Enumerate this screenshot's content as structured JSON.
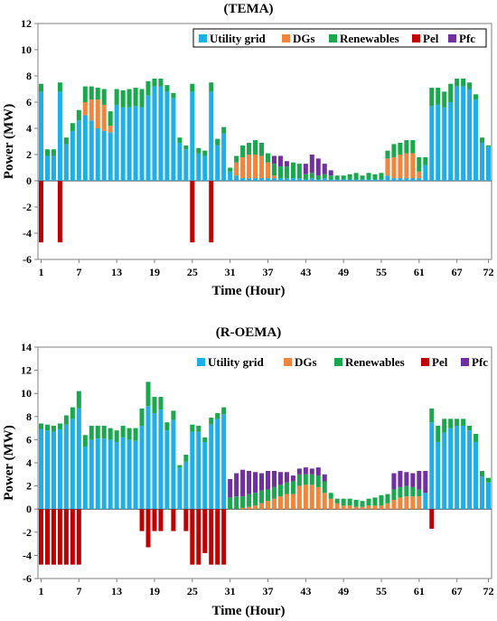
{
  "colors": {
    "utility": "#1eaee8",
    "dgs": "#f0853c",
    "renewables": "#19a84e",
    "pel": "#c00000",
    "pfc": "#7030a0",
    "frame": "#808080",
    "grid": "#c8c8c8"
  },
  "chart_data": [
    {
      "type": "bar",
      "stacked": true,
      "title": "(TEMA)",
      "xlabel": "Time (Hour)",
      "ylabel": "Power (MW)",
      "ylim": [
        -6,
        12
      ],
      "yticks": [
        -6,
        -4,
        -2,
        0,
        2,
        4,
        6,
        8,
        10,
        12
      ],
      "xticks": [
        1,
        7,
        13,
        19,
        25,
        31,
        37,
        43,
        49,
        55,
        61,
        67,
        72
      ],
      "hours": [
        1,
        2,
        3,
        4,
        5,
        6,
        7,
        8,
        9,
        10,
        11,
        12,
        13,
        14,
        15,
        16,
        17,
        18,
        19,
        20,
        21,
        22,
        23,
        24,
        25,
        26,
        27,
        28,
        29,
        30,
        31,
        32,
        33,
        34,
        35,
        36,
        37,
        38,
        39,
        40,
        41,
        42,
        43,
        44,
        45,
        46,
        47,
        48,
        49,
        50,
        51,
        52,
        53,
        54,
        55,
        56,
        57,
        58,
        59,
        60,
        61,
        62,
        63,
        64,
        65,
        66,
        67,
        68,
        69,
        70,
        71,
        72
      ],
      "legend": {
        "placement": "top-right",
        "entries": [
          "Utility grid",
          "DGs",
          "Renewables",
          "Pel",
          "Pfc"
        ]
      },
      "series": [
        {
          "name": "Utility grid",
          "color_key": "utility",
          "values": [
            6.8,
            1.9,
            1.9,
            6.8,
            2.8,
            3.8,
            4.6,
            5.0,
            4.6,
            4.0,
            3.8,
            3.7,
            5.8,
            5.6,
            5.6,
            5.7,
            5.6,
            6.5,
            7.2,
            7.2,
            6.8,
            6.3,
            2.9,
            2.4,
            6.8,
            2.1,
            1.9,
            6.8,
            2.7,
            3.6,
            0.7,
            0.4,
            0.2,
            0.2,
            0.2,
            0.2,
            0.2,
            0.2,
            0.2,
            0.2,
            0.2,
            0.2,
            0.1,
            0.2,
            0.1,
            0.2,
            0.1,
            0.1,
            0.1,
            0.1,
            0.1,
            0.1,
            0.1,
            0.1,
            0.1,
            0.4,
            0.2,
            0.2,
            0.2,
            0.2,
            0.2,
            1.2,
            5.7,
            5.8,
            5.6,
            6.0,
            7.2,
            7.2,
            7.0,
            6.2,
            2.9,
            2.6
          ]
        },
        {
          "name": "DGs",
          "color_key": "dgs",
          "values": [
            0,
            0,
            0,
            0,
            0,
            0,
            0,
            1.0,
            1.6,
            2.2,
            2.0,
            0.5,
            0,
            0,
            0,
            0,
            0,
            0,
            0,
            0,
            0,
            0,
            0,
            0,
            0,
            0,
            0,
            0,
            0,
            0,
            0,
            1.0,
            1.6,
            1.8,
            1.8,
            1.7,
            1.2,
            0.2,
            0,
            0,
            0,
            0,
            0,
            0,
            0,
            0,
            0,
            0,
            0,
            0,
            0,
            0,
            0,
            0,
            0,
            1.3,
            1.6,
            1.8,
            1.9,
            1.9,
            0.5,
            0,
            0,
            0,
            0,
            0,
            0,
            0,
            0,
            0,
            0,
            0
          ]
        },
        {
          "name": "Renewables",
          "color_key": "renewables",
          "values": [
            0.6,
            0.5,
            0.5,
            0.7,
            0.5,
            0.6,
            0.8,
            1.2,
            1.0,
            0.9,
            1.2,
            1.1,
            1.2,
            1.3,
            1.4,
            1.4,
            1.4,
            1.1,
            0.6,
            0.6,
            0.5,
            0.4,
            0.4,
            0.3,
            0.6,
            0.4,
            0.4,
            0.7,
            0.5,
            0.5,
            0.3,
            0.5,
            0.9,
            0.9,
            1.1,
            1.0,
            0.7,
            0.9,
            0.9,
            0.9,
            1.2,
            1.1,
            0.4,
            0.4,
            0.3,
            0.3,
            0.3,
            0.3,
            0.3,
            0.4,
            0.5,
            0.3,
            0.5,
            0.4,
            0.5,
            0.6,
            1.0,
            0.9,
            1.0,
            1.0,
            1.1,
            0.6,
            1.4,
            1.3,
            1.2,
            1.4,
            0.6,
            0.6,
            0.5,
            0.4,
            0.4,
            0.1
          ]
        },
        {
          "name": "Pfc",
          "color_key": "pfc",
          "values": [
            0,
            0,
            0,
            0,
            0,
            0,
            0,
            0,
            0,
            0,
            0,
            0,
            0,
            0,
            0,
            0,
            0,
            0,
            0,
            0,
            0,
            0,
            0,
            0,
            0,
            0,
            0,
            0,
            0,
            0,
            0,
            0,
            0,
            0,
            0,
            0,
            0,
            0.6,
            0.8,
            0.4,
            0,
            0,
            0.8,
            1.4,
            1.3,
            0.8,
            0.4,
            0,
            0,
            0,
            0,
            0,
            0,
            0,
            0,
            0,
            0,
            0,
            0,
            0,
            0,
            0,
            0,
            0,
            0,
            0,
            0,
            0,
            0,
            0,
            0,
            0
          ]
        },
        {
          "name": "Pel",
          "color_key": "pel",
          "values": [
            -4.7,
            0,
            0,
            -4.7,
            0,
            0,
            0,
            0,
            0,
            0,
            0,
            0,
            0,
            0,
            0,
            0,
            0,
            0,
            0,
            0,
            0,
            0,
            0,
            0,
            -4.7,
            0,
            0,
            -4.7,
            0,
            0,
            0,
            0,
            0,
            0,
            0,
            0,
            0,
            0,
            0,
            0,
            0,
            0,
            0,
            0,
            0,
            0,
            0,
            0,
            0,
            0,
            0,
            0,
            0,
            0,
            0,
            0,
            0,
            0,
            0,
            0,
            0,
            0,
            0,
            0,
            0,
            0,
            0,
            0,
            0,
            0,
            0,
            0
          ]
        }
      ]
    },
    {
      "type": "bar",
      "stacked": true,
      "title": "(R-OEMA)",
      "xlabel": "Time (Hour)",
      "ylabel": "Power (MW)",
      "ylim": [
        -6,
        14
      ],
      "yticks": [
        -6,
        -4,
        -2,
        0,
        2,
        4,
        6,
        8,
        10,
        12,
        14
      ],
      "xticks": [
        1,
        7,
        13,
        19,
        25,
        31,
        37,
        43,
        49,
        55,
        61,
        67,
        72
      ],
      "hours": [
        1,
        2,
        3,
        4,
        5,
        6,
        7,
        8,
        9,
        10,
        11,
        12,
        13,
        14,
        15,
        16,
        17,
        18,
        19,
        20,
        21,
        22,
        23,
        24,
        25,
        26,
        27,
        28,
        29,
        30,
        31,
        32,
        33,
        34,
        35,
        36,
        37,
        38,
        39,
        40,
        41,
        42,
        43,
        44,
        45,
        46,
        47,
        48,
        49,
        50,
        51,
        52,
        53,
        54,
        55,
        56,
        57,
        58,
        59,
        60,
        61,
        62,
        63,
        64,
        65,
        66,
        67,
        68,
        69,
        70,
        71,
        72
      ],
      "legend": {
        "placement": "top-right",
        "entries": [
          "Utility grid",
          "DGs",
          "Renewables",
          "Pel",
          "Pfc"
        ]
      },
      "series": [
        {
          "name": "Utility grid",
          "color_key": "utility",
          "values": [
            6.9,
            6.8,
            6.7,
            6.9,
            7.3,
            7.8,
            8.7,
            5.4,
            6.0,
            6.1,
            6.1,
            6.0,
            5.8,
            6.2,
            6.0,
            5.9,
            7.2,
            8.9,
            8.3,
            8.6,
            6.8,
            7.7,
            3.6,
            4.1,
            6.7,
            6.7,
            5.8,
            7.3,
            7.8,
            8.2,
            0,
            0,
            0,
            0,
            0,
            0,
            0,
            0,
            0,
            0,
            0,
            0,
            0,
            0,
            0,
            0,
            0,
            0,
            0,
            0,
            0,
            0,
            0,
            0,
            0,
            0,
            0,
            0,
            0,
            0,
            0,
            1.4,
            7.5,
            5.8,
            6.6,
            7.0,
            7.2,
            7.2,
            6.8,
            5.8,
            2.8,
            2.3
          ]
        },
        {
          "name": "DGs",
          "color_key": "dgs",
          "values": [
            0,
            0,
            0,
            0,
            0,
            0,
            0,
            0,
            0,
            0,
            0,
            0,
            0,
            0,
            0,
            0,
            0,
            0,
            0,
            0,
            0,
            0,
            0,
            0,
            0,
            0,
            0,
            0,
            0,
            0,
            0,
            0,
            0.1,
            0.2,
            0.3,
            0.5,
            0.7,
            0.9,
            1.1,
            1.3,
            1.3,
            2.0,
            2.1,
            2.1,
            1.9,
            1.4,
            0.9,
            0.5,
            0.3,
            0.3,
            0.2,
            0.2,
            0.3,
            0.3,
            0.3,
            0.5,
            0.8,
            1.0,
            1.1,
            1.1,
            1.1,
            0,
            0,
            0,
            0,
            0,
            0,
            0,
            0,
            0,
            0,
            0
          ]
        },
        {
          "name": "Renewables",
          "color_key": "renewables",
          "values": [
            0.5,
            0.5,
            0.5,
            0.5,
            0.8,
            1.0,
            1.5,
            1.0,
            1.2,
            1.1,
            1.1,
            1.0,
            1.0,
            1.0,
            1.0,
            1.1,
            1.5,
            2.1,
            1.4,
            1.1,
            0.7,
            0.8,
            0.2,
            0.6,
            0.6,
            0.5,
            0.4,
            0.6,
            0.5,
            0.6,
            1.0,
            1.1,
            1.0,
            1.1,
            1.1,
            1.1,
            1.0,
            1.0,
            1.0,
            1.0,
            1.1,
            1.0,
            0.9,
            0.9,
            1.0,
            1.0,
            0.5,
            0.4,
            0.6,
            0.6,
            0.6,
            0.5,
            0.6,
            0.7,
            0.9,
            0.8,
            0.9,
            0.9,
            0.9,
            0.8,
            0.6,
            0,
            1.2,
            1.4,
            1.2,
            0.8,
            0.6,
            0.6,
            0.4,
            0.7,
            0.5,
            0.4
          ]
        },
        {
          "name": "Pfc",
          "color_key": "pfc",
          "values": [
            0,
            0,
            0,
            0,
            0,
            0,
            0,
            0,
            0,
            0,
            0,
            0,
            0,
            0,
            0,
            0,
            0,
            0,
            0,
            0,
            0,
            0,
            0,
            0,
            0,
            0,
            0,
            0,
            0,
            0,
            1.6,
            2.0,
            2.3,
            2.0,
            1.8,
            1.5,
            1.6,
            1.4,
            1.1,
            0.9,
            0.5,
            0.5,
            0.6,
            0.5,
            0.7,
            0.6,
            0,
            0,
            0,
            0,
            0,
            0,
            0,
            0,
            0,
            0,
            1.4,
            1.4,
            1.2,
            1.2,
            1.6,
            1.9,
            0,
            0,
            0,
            0,
            0,
            0,
            0,
            0,
            0,
            0
          ]
        },
        {
          "name": "Pel",
          "color_key": "pel",
          "values": [
            -4.8,
            -4.8,
            -4.8,
            -4.8,
            -4.8,
            -4.8,
            -4.8,
            0,
            0,
            0,
            0,
            0,
            0,
            0,
            0,
            0,
            -1.9,
            -3.3,
            -1.9,
            -1.9,
            0,
            -1.9,
            0,
            -1.9,
            -4.8,
            -4.8,
            -3.8,
            -4.8,
            -4.8,
            -4.8,
            0,
            0,
            0,
            0,
            0,
            0,
            0,
            0,
            0,
            0,
            0,
            0,
            0,
            0,
            0,
            0,
            0,
            0,
            0,
            0,
            0,
            0,
            0,
            0,
            0,
            0,
            0,
            0,
            0,
            0,
            0,
            0,
            -1.7,
            0,
            0,
            0,
            0,
            0,
            0,
            0,
            0,
            0
          ]
        }
      ]
    }
  ]
}
